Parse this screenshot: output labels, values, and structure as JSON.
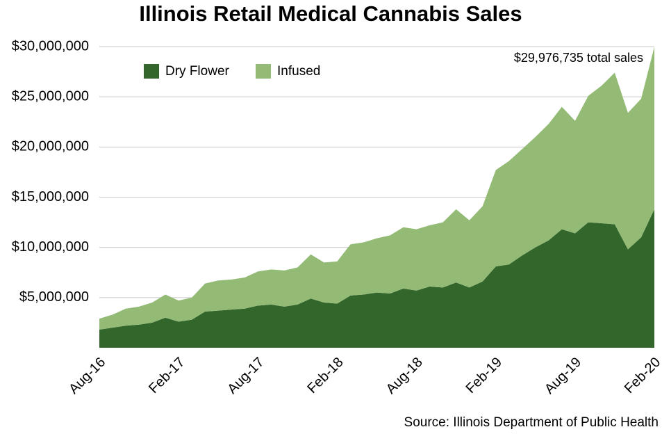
{
  "chart_data": {
    "type": "stacked_area",
    "title": "Illinois Retail Medical Cannabis Sales",
    "annotation": "$29,976,735 total sales",
    "source": "Source: Illinois Department of Public Health",
    "categories": [
      "Aug-16",
      null,
      null,
      null,
      null,
      null,
      "Feb-17",
      null,
      null,
      null,
      null,
      null,
      "Aug-17",
      null,
      null,
      null,
      null,
      null,
      "Feb-18",
      null,
      null,
      null,
      null,
      null,
      "Aug-18",
      null,
      null,
      null,
      null,
      null,
      "Feb-19",
      null,
      null,
      null,
      null,
      null,
      "Aug-19",
      null,
      null,
      null,
      null,
      null,
      "Feb-20"
    ],
    "series": [
      {
        "name": "Dry Flower",
        "color": "#33662b",
        "values": [
          1800000,
          2000000,
          2200000,
          2300000,
          2500000,
          3000000,
          2600000,
          2800000,
          3600000,
          3700000,
          3800000,
          3900000,
          4200000,
          4300000,
          4100000,
          4300000,
          4900000,
          4500000,
          4400000,
          5200000,
          5300000,
          5500000,
          5400000,
          5900000,
          5700000,
          6100000,
          6000000,
          6500000,
          6000000,
          6600000,
          8100000,
          8300000,
          9200000,
          10000000,
          10700000,
          11800000,
          11400000,
          12500000,
          12400000,
          12300000,
          9800000,
          11000000,
          13800000
        ]
      },
      {
        "name": "Infused",
        "color": "#93bb76",
        "values": [
          1100000,
          1300000,
          1700000,
          1800000,
          2000000,
          2300000,
          2100000,
          2200000,
          2800000,
          3000000,
          3000000,
          3100000,
          3400000,
          3500000,
          3600000,
          3700000,
          4400000,
          4000000,
          4200000,
          5100000,
          5200000,
          5400000,
          5800000,
          6100000,
          6100000,
          6100000,
          6500000,
          7300000,
          6700000,
          7500000,
          9600000,
          10300000,
          10600000,
          11000000,
          11600000,
          12200000,
          11200000,
          12600000,
          13700000,
          15100000,
          13600000,
          13800000,
          16176735
        ]
      }
    ],
    "ylim": [
      0,
      30000000
    ],
    "yticks": [
      {
        "value": 5000000,
        "label": "$5,000,000"
      },
      {
        "value": 10000000,
        "label": "$10,000,000"
      },
      {
        "value": 15000000,
        "label": "$15,000,000"
      },
      {
        "value": 20000000,
        "label": "$20,000,000"
      },
      {
        "value": 25000000,
        "label": "$25,000,000"
      },
      {
        "value": 30000000,
        "label": "$30,000,000"
      }
    ],
    "grid": true
  }
}
